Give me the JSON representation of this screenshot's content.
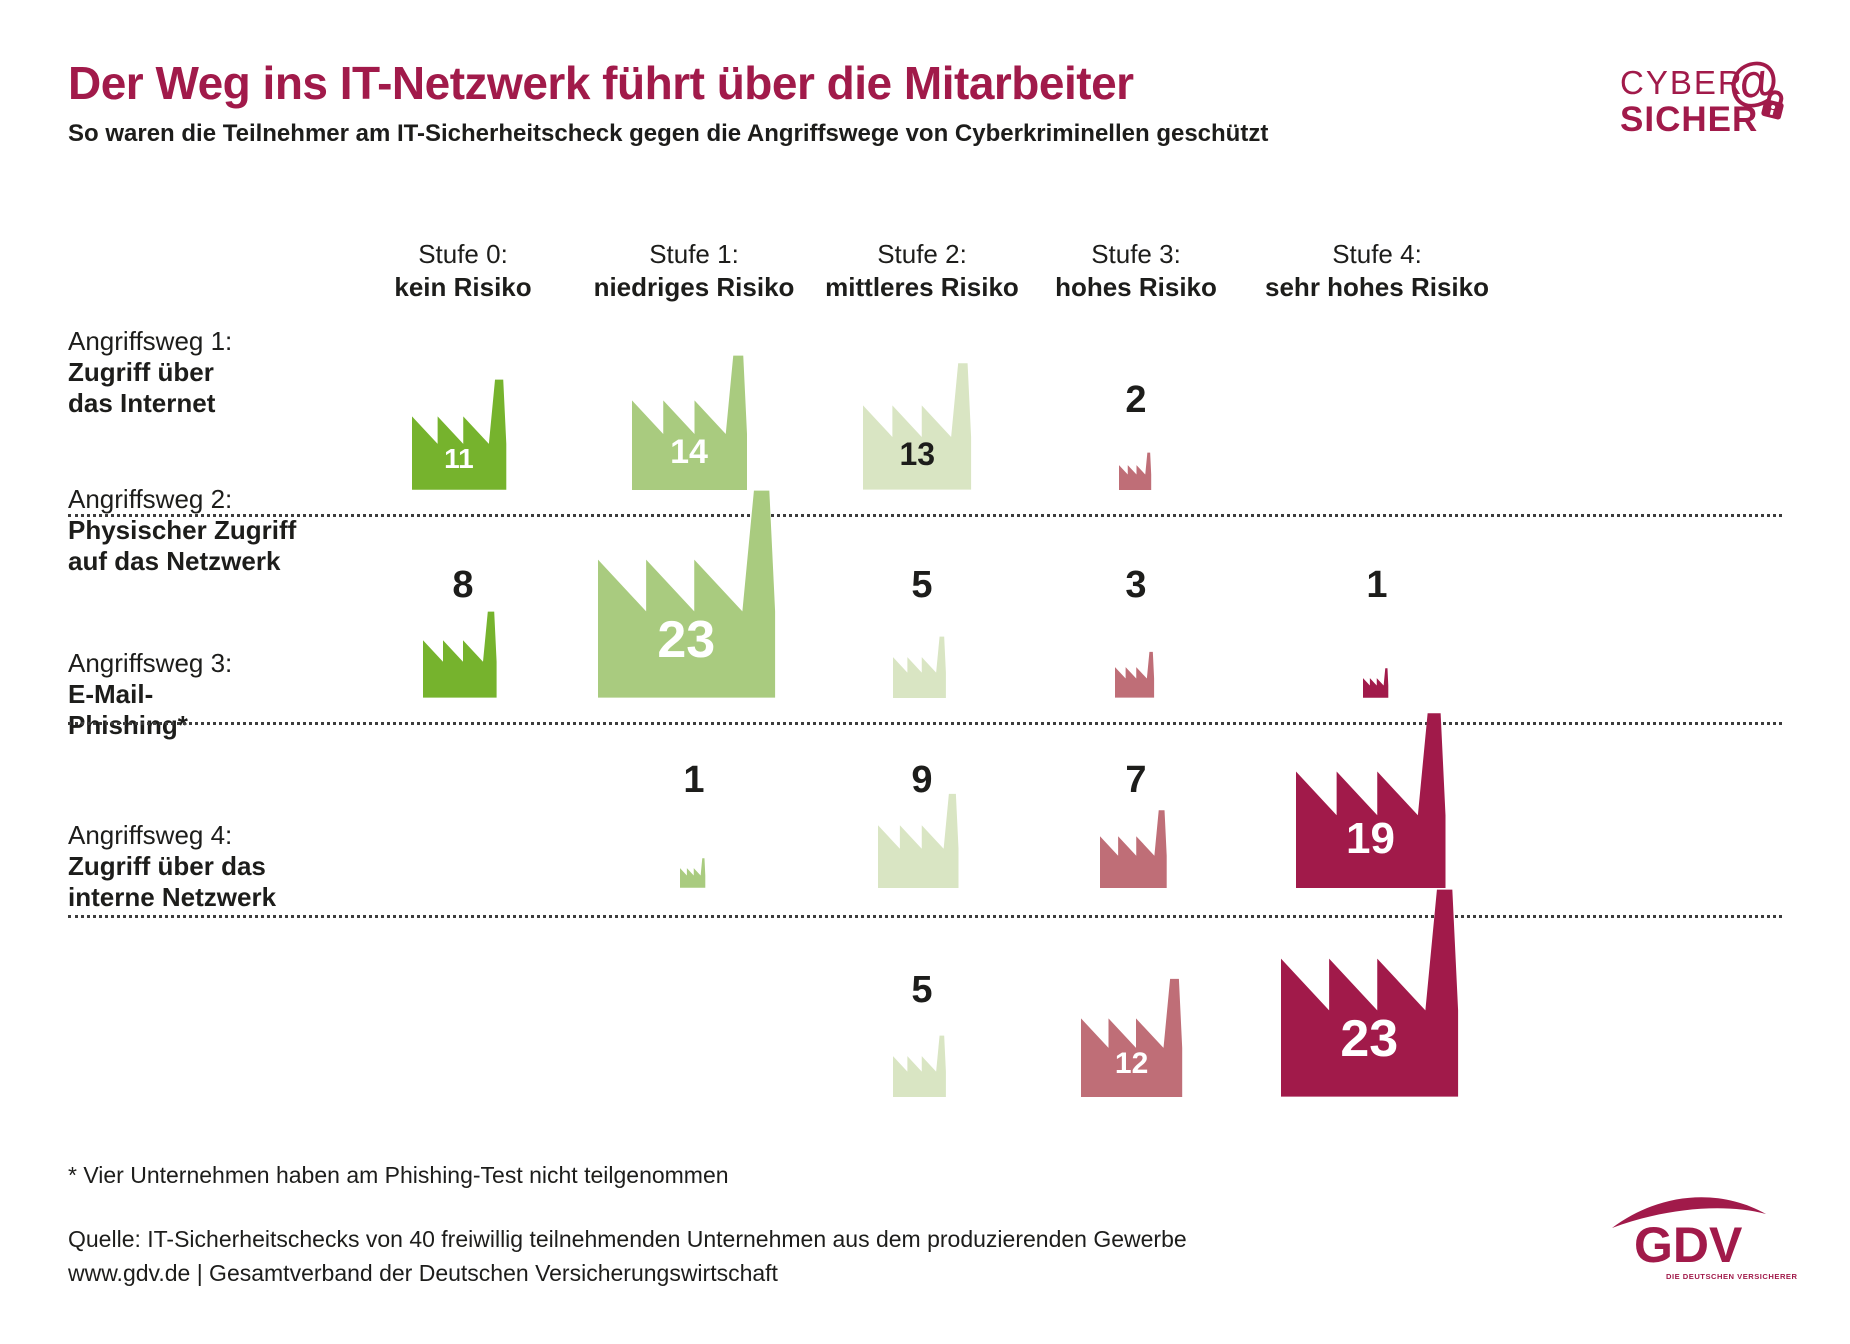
{
  "meta": {
    "title": "Der Weg ins IT-Netzwerk führt über die Mitarbeiter",
    "subtitle": "So waren die Teilnehmer am IT-Sicherheitscheck gegen die Angriffswege von Cyberkriminellen geschützt"
  },
  "brand": {
    "line1": "CYBER",
    "line2": "SICHER",
    "at_symbol": "@",
    "color": "#a11a4a"
  },
  "columns": [
    {
      "line1": "Stufe 0:",
      "line2": "kein Risiko",
      "color": "#76b32d",
      "inside_text": "#ffffff"
    },
    {
      "line1": "Stufe 1:",
      "line2": "niedriges Risiko",
      "color": "#a9cb7f",
      "inside_text": "#ffffff"
    },
    {
      "line1": "Stufe 2:",
      "line2": "mittleres Risiko",
      "color": "#d9e5c3",
      "inside_text": "#1d1d1b"
    },
    {
      "line1": "Stufe 3:",
      "line2": "hohes Risiko",
      "color": "#bf6e77",
      "inside_text": "#ffffff"
    },
    {
      "line1": "Stufe 4:",
      "line2": "sehr hohes Risiko",
      "color": "#a11a4a",
      "inside_text": "#ffffff"
    }
  ],
  "rows": [
    {
      "line1": "Angriffsweg 1:",
      "bold": [
        "Zugriff über",
        "das Internet"
      ]
    },
    {
      "line1": "Angriffsweg 2:",
      "bold": [
        "Physischer Zugriff",
        "auf das Netzwerk"
      ]
    },
    {
      "line1": "Angriffsweg 3:",
      "bold": [
        "E-Mail-",
        "Phishing*"
      ]
    },
    {
      "line1": "Angriffsweg 4:",
      "bold": [
        "Zugriff über das",
        "interne Netzwerk"
      ]
    }
  ],
  "chart_data": {
    "type": "heatmap",
    "title": "Der Weg ins IT-Netzwerk führt über die Mitarbeiter",
    "subtitle": "So waren die Teilnehmer am IT-Sicherheitscheck gegen die Angriffswege von Cyberkriminellen geschützt",
    "categories": [
      "Stufe 0: kein Risiko",
      "Stufe 1: niedriges Risiko",
      "Stufe 2: mittleres Risiko",
      "Stufe 3: hohes Risiko",
      "Stufe 4: sehr hohes Risiko"
    ],
    "series": [
      {
        "name": "Angriffsweg 1: Zugriff über das Internet",
        "values": [
          11,
          14,
          13,
          2,
          null
        ]
      },
      {
        "name": "Angriffsweg 2: Physischer Zugriff auf das Netzwerk",
        "values": [
          8,
          23,
          5,
          3,
          1
        ]
      },
      {
        "name": "Angriffsweg 3: E-Mail-Phishing*",
        "values": [
          null,
          1,
          9,
          7,
          19
        ]
      },
      {
        "name": "Angriffsweg 4: Zugriff über das interne Netzwerk",
        "values": [
          null,
          null,
          5,
          12,
          23
        ]
      }
    ],
    "value_unit": "Unternehmen",
    "annotation": "* Vier Unternehmen haben am Phishing-Test nicht teilgenommen",
    "legend_position": "none",
    "grid": "off",
    "icon": "factory-pictogram-sized-by-value",
    "colors_by_category": [
      "#76b32d",
      "#a9cb7f",
      "#d9e5c3",
      "#bf6e77",
      "#a11a4a"
    ]
  },
  "footer": {
    "footnote": "* Vier Unternehmen haben am Phishing-Test nicht teilgenommen",
    "source_line1": "Quelle: IT-Sicherheitschecks von 40 freiwillig teilnehmenden Unternehmen aus dem produzierenden Gewerbe",
    "source_line2": "www.gdv.de | Gesamtverband der Deutschen Versicherungswirtschaft"
  },
  "gdv": {
    "name": "GDV",
    "tagline": "DIE DEUTSCHEN VERSICHERER",
    "color": "#a11a4a"
  }
}
